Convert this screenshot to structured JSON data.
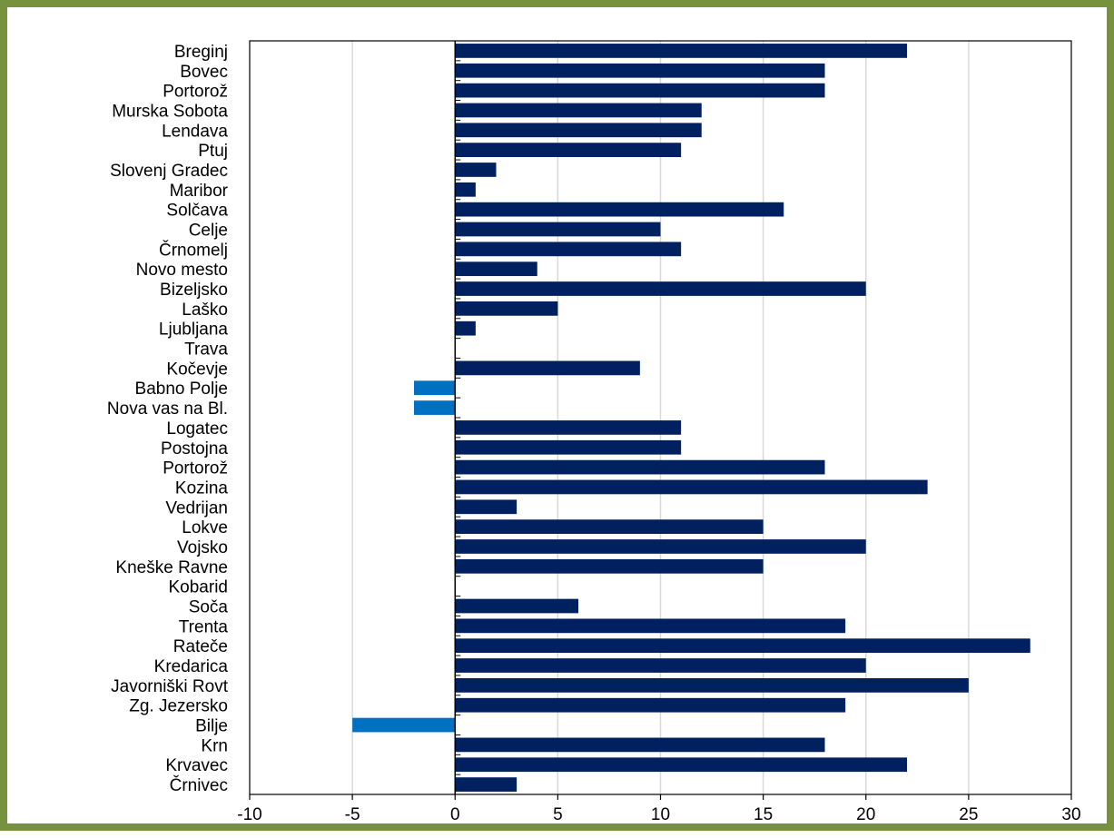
{
  "chart_data": {
    "type": "bar",
    "orientation": "horizontal",
    "categories": [
      "Breginj",
      "Bovec",
      "Portorož",
      "Murska Sobota",
      "Lendava",
      "Ptuj",
      "Slovenj Gradec",
      "Maribor",
      "Solčava",
      "Celje",
      "Črnomelj",
      "Novo mesto",
      "Bizeljsko",
      "Laško",
      "Ljubljana",
      "Trava",
      "Kočevje",
      "Babno Polje",
      "Nova vas na Bl.",
      "Logatec",
      "Postojna",
      "Portorož",
      "Kozina",
      "Vedrijan",
      "Lokve",
      "Vojsko",
      "Kneške Ravne",
      "Kobarid",
      "Soča",
      "Trenta",
      "Rateče",
      "Kredarica",
      "Javorniški Rovt",
      "Zg. Jezersko",
      "Bilje",
      "Krn",
      "Krvavec",
      "Črnivec"
    ],
    "values": [
      22,
      18,
      18,
      12,
      12,
      11,
      2,
      1,
      16,
      10,
      11,
      4,
      20,
      5,
      1,
      0,
      9,
      -2,
      -2,
      11,
      11,
      18,
      23,
      3,
      15,
      20,
      15,
      0,
      6,
      19,
      28,
      20,
      25,
      19,
      -5,
      18,
      22,
      3
    ],
    "xlim": [
      -10,
      30
    ],
    "xticks": [
      "-10",
      "-5",
      "0",
      "5",
      "10",
      "15",
      "20",
      "25",
      "30"
    ],
    "grid": true,
    "colors": {
      "positive": "#002060",
      "negative": "#0070c0",
      "border": "#76923c",
      "grid": "#d9d9d9",
      "axis": "#000000"
    }
  }
}
